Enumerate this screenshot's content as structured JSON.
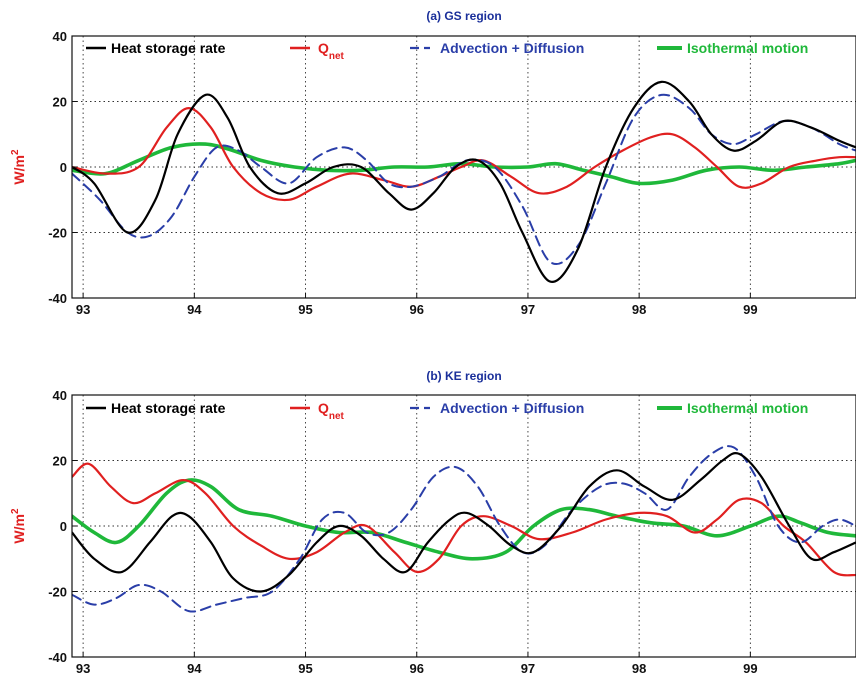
{
  "chart_data": [
    {
      "type": "line",
      "title": "(a) GS region",
      "ylabel": "W/m",
      "ylabel_sup": "2",
      "xlim": [
        92.9,
        99.95
      ],
      "ylim": [
        -40,
        40
      ],
      "xticks": [
        93,
        94,
        95,
        96,
        97,
        98,
        99
      ],
      "yticks": [
        -40,
        -20,
        0,
        20,
        40
      ],
      "grid": true,
      "legend_position": "top",
      "series": [
        {
          "name": "Heat storage rate",
          "color": "#000000",
          "style": "solid",
          "x": [
            92.9,
            93.1,
            93.4,
            93.65,
            93.85,
            94.1,
            94.3,
            94.5,
            94.75,
            95.0,
            95.25,
            95.5,
            95.75,
            95.95,
            96.15,
            96.35,
            96.55,
            96.75,
            96.95,
            97.2,
            97.45,
            97.7,
            97.95,
            98.2,
            98.45,
            98.65,
            98.85,
            99.05,
            99.3,
            99.55,
            99.8,
            99.95
          ],
          "y": [
            0,
            -5,
            -20,
            -10,
            10,
            22,
            15,
            0,
            -8,
            -5,
            0,
            0,
            -8,
            -13,
            -8,
            0,
            2,
            -5,
            -20,
            -35,
            -25,
            0,
            18,
            26,
            20,
            10,
            5,
            8,
            14,
            12,
            8,
            6
          ]
        },
        {
          "name": "Q",
          "name_sub": "net",
          "color": "#e02020",
          "style": "solid",
          "x": [
            92.9,
            93.2,
            93.5,
            93.75,
            93.95,
            94.15,
            94.35,
            94.6,
            94.85,
            95.1,
            95.4,
            95.7,
            95.95,
            96.2,
            96.4,
            96.6,
            96.85,
            97.1,
            97.35,
            97.6,
            97.85,
            98.1,
            98.3,
            98.5,
            98.7,
            98.9,
            99.1,
            99.35,
            99.6,
            99.8,
            99.95
          ],
          "y": [
            0,
            -2,
            0,
            12,
            18,
            12,
            0,
            -8,
            -10,
            -6,
            -2,
            -4,
            -6,
            -3,
            0,
            2,
            -3,
            -8,
            -6,
            0,
            5,
            9,
            10,
            6,
            0,
            -6,
            -5,
            0,
            2,
            3,
            3
          ]
        },
        {
          "name": "Advection + Diffusion",
          "color": "#2a3ea8",
          "style": "dashed",
          "x": [
            92.9,
            93.15,
            93.4,
            93.6,
            93.8,
            94.0,
            94.2,
            94.4,
            94.6,
            94.85,
            95.1,
            95.35,
            95.55,
            95.75,
            95.95,
            96.2,
            96.45,
            96.7,
            96.95,
            97.2,
            97.45,
            97.7,
            97.95,
            98.2,
            98.45,
            98.65,
            98.85,
            99.05,
            99.3,
            99.55,
            99.8,
            99.95
          ],
          "y": [
            -2,
            -10,
            -20,
            -21,
            -15,
            -3,
            6,
            5,
            0,
            -5,
            3,
            6,
            2,
            -5,
            -6,
            -3,
            2,
            0,
            -12,
            -29,
            -24,
            -5,
            15,
            22,
            18,
            10,
            7,
            10,
            14,
            12,
            7,
            5
          ]
        },
        {
          "name": "Isothermal motion",
          "color": "#1fb83a",
          "style": "solid-thick",
          "x": [
            92.9,
            93.2,
            93.5,
            93.8,
            94.1,
            94.35,
            94.6,
            94.9,
            95.2,
            95.5,
            95.8,
            96.1,
            96.4,
            96.7,
            97.0,
            97.25,
            97.5,
            97.75,
            98.0,
            98.3,
            98.6,
            98.9,
            99.2,
            99.5,
            99.8,
            99.95
          ],
          "y": [
            -1,
            -2,
            2,
            6,
            7,
            5,
            2,
            0,
            -1,
            -1,
            0,
            0,
            1,
            0,
            0,
            1,
            -1,
            -3,
            -5,
            -4,
            -1,
            0,
            -1,
            0,
            1,
            2
          ]
        }
      ]
    },
    {
      "type": "line",
      "title": "(b) KE region",
      "ylabel": "W/m",
      "ylabel_sup": "2",
      "xlim": [
        92.9,
        99.95
      ],
      "ylim": [
        -40,
        40
      ],
      "xticks": [
        93,
        94,
        95,
        96,
        97,
        98,
        99
      ],
      "yticks": [
        -40,
        -20,
        0,
        20,
        40
      ],
      "grid": true,
      "legend_position": "top",
      "series": [
        {
          "name": "Heat storage rate",
          "color": "#000000",
          "style": "solid",
          "x": [
            92.9,
            93.1,
            93.35,
            93.6,
            93.8,
            93.95,
            94.15,
            94.35,
            94.6,
            94.85,
            95.1,
            95.3,
            95.5,
            95.7,
            95.9,
            96.1,
            96.3,
            96.45,
            96.65,
            96.85,
            97.05,
            97.3,
            97.55,
            97.8,
            98.05,
            98.3,
            98.55,
            98.75,
            98.9,
            99.1,
            99.35,
            99.55,
            99.75,
            99.95
          ],
          "y": [
            -2,
            -10,
            -14,
            -5,
            3,
            3,
            -5,
            -16,
            -20,
            -15,
            -5,
            0,
            -3,
            -10,
            -14,
            -5,
            2,
            4,
            0,
            -6,
            -8,
            0,
            12,
            17,
            12,
            8,
            14,
            20,
            22,
            15,
            0,
            -10,
            -8,
            -5
          ]
        },
        {
          "name": "Q",
          "name_sub": "net",
          "color": "#e02020",
          "style": "solid",
          "x": [
            92.9,
            93.05,
            93.25,
            93.45,
            93.65,
            93.9,
            94.1,
            94.35,
            94.6,
            94.85,
            95.1,
            95.35,
            95.55,
            95.8,
            96.0,
            96.2,
            96.4,
            96.6,
            96.85,
            97.1,
            97.4,
            97.7,
            98.0,
            98.25,
            98.5,
            98.7,
            98.9,
            99.1,
            99.3,
            99.5,
            99.75,
            99.95
          ],
          "y": [
            15,
            19,
            12,
            7,
            10,
            14,
            10,
            0,
            -6,
            -10,
            -8,
            -2,
            0,
            -8,
            -14,
            -10,
            0,
            3,
            0,
            -4,
            -2,
            2,
            4,
            3,
            -2,
            2,
            8,
            7,
            0,
            -5,
            -14,
            -15
          ]
        },
        {
          "name": "Advection + Diffusion",
          "color": "#2a3ea8",
          "style": "dashed",
          "x": [
            92.9,
            93.1,
            93.3,
            93.5,
            93.7,
            93.95,
            94.2,
            94.45,
            94.7,
            94.95,
            95.15,
            95.35,
            95.55,
            95.75,
            95.95,
            96.15,
            96.35,
            96.55,
            96.75,
            96.95,
            97.15,
            97.4,
            97.65,
            97.85,
            98.05,
            98.25,
            98.45,
            98.65,
            98.85,
            99.05,
            99.25,
            99.45,
            99.65,
            99.8,
            99.95
          ],
          "y": [
            -21,
            -24,
            -22,
            -18,
            -20,
            -26,
            -24,
            -22,
            -20,
            -10,
            2,
            4,
            -2,
            -2,
            5,
            15,
            18,
            12,
            0,
            -8,
            -6,
            5,
            12,
            13,
            10,
            5,
            15,
            22,
            24,
            15,
            0,
            -5,
            0,
            2,
            0
          ]
        },
        {
          "name": "Isothermal motion",
          "color": "#1fb83a",
          "style": "solid-thick",
          "x": [
            92.9,
            93.1,
            93.3,
            93.5,
            93.75,
            93.95,
            94.15,
            94.4,
            94.7,
            95.0,
            95.3,
            95.6,
            95.9,
            96.2,
            96.5,
            96.8,
            97.05,
            97.3,
            97.55,
            97.8,
            98.1,
            98.4,
            98.7,
            99.0,
            99.25,
            99.45,
            99.7,
            99.95
          ],
          "y": [
            3,
            -2,
            -5,
            0,
            10,
            14,
            12,
            5,
            3,
            0,
            -2,
            -2,
            -5,
            -8,
            -10,
            -8,
            0,
            5,
            5,
            3,
            1,
            0,
            -3,
            0,
            3,
            1,
            -2,
            -3
          ]
        }
      ]
    }
  ]
}
